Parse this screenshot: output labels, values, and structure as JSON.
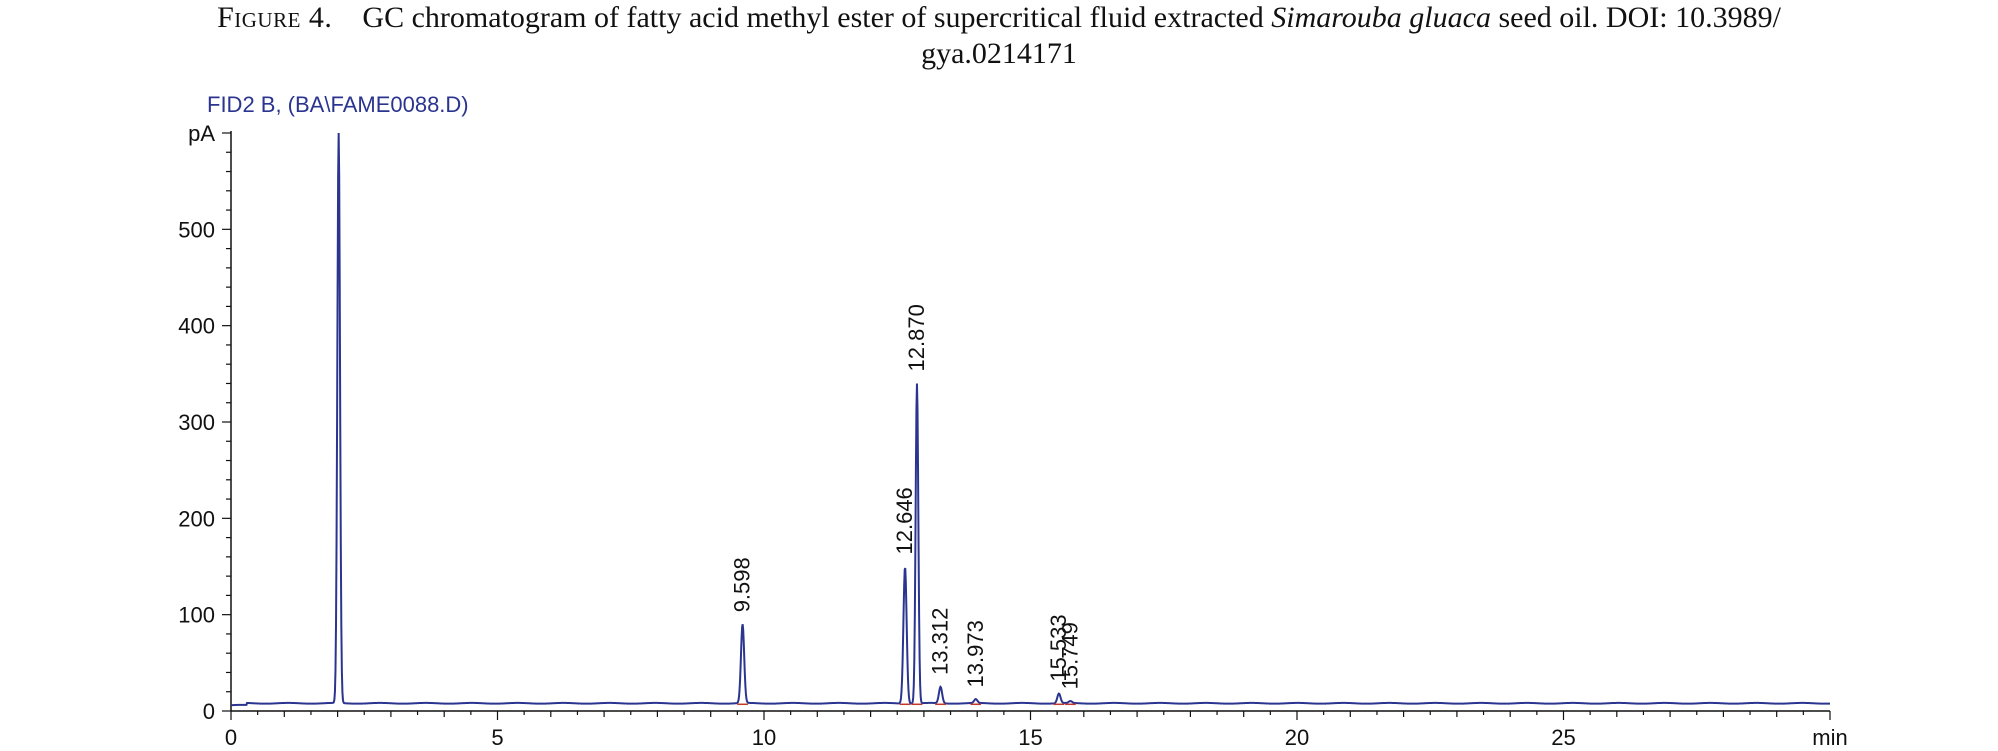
{
  "caption": {
    "figure_label": "Figure 4.",
    "text_before_italic": "GC chromatogram of fatty acid methyl ester of supercritical fluid extracted ",
    "italic": "Simarouba gluaca",
    "text_after_italic": " seed oil. DOI: 10.3989/",
    "line2": "gya.0214171"
  },
  "chart_data": {
    "type": "line",
    "signal_name": "FID2 B, (BA\\FAME0088.D)",
    "ylabel": "pA",
    "xlabel": "min",
    "xlim": [
      0,
      30
    ],
    "ylim": [
      0,
      600
    ],
    "x_ticks": [
      0,
      5,
      10,
      15,
      20,
      25
    ],
    "y_ticks": [
      0,
      100,
      200,
      300,
      400,
      500
    ],
    "grid": false,
    "baseline_pA": 8,
    "line_color": "#2b3590",
    "marker_color": "#c0392b",
    "peaks": [
      {
        "rt": 2.02,
        "height_pA": 600,
        "labeled": false
      },
      {
        "rt": 9.598,
        "height_pA": 90,
        "labeled": true
      },
      {
        "rt": 12.646,
        "height_pA": 150,
        "labeled": true
      },
      {
        "rt": 12.87,
        "height_pA": 340,
        "labeled": true
      },
      {
        "rt": 13.312,
        "height_pA": 25,
        "labeled": true
      },
      {
        "rt": 13.973,
        "height_pA": 12,
        "labeled": true
      },
      {
        "rt": 15.533,
        "height_pA": 18,
        "labeled": true
      },
      {
        "rt": 15.749,
        "height_pA": 10,
        "labeled": true
      }
    ],
    "peak_labels": [
      "9.598",
      "12.646",
      "12.870",
      "13.312",
      "13.973",
      "15.533",
      "15.749"
    ]
  }
}
